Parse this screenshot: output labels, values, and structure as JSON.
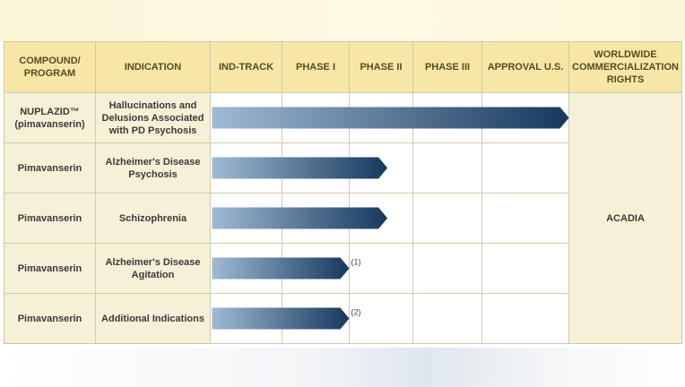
{
  "colors": {
    "header_bg": "#f6e7a6",
    "label_bg": "#f6f0d7",
    "bar_start": "#9fbad3",
    "bar_end": "#17385e",
    "grid": "#cfc9ad"
  },
  "table": {
    "headers": {
      "compound": "COMPOUND/ PROGRAM",
      "indication": "INDICATION",
      "ind_track": "IND-TRACK",
      "phase1": "PHASE I",
      "phase2": "PHASE II",
      "phase3": "PHASE III",
      "approval": "APPROVAL U.S.",
      "rights": "WORLDWIDE COMMERCIALIZATION RIGHTS"
    },
    "rights_value": "ACADIA"
  },
  "chart_data": {
    "type": "bar",
    "orientation": "horizontal",
    "stages": [
      "IND-TRACK",
      "PHASE I",
      "PHASE II",
      "PHASE III",
      "APPROVAL U.S."
    ],
    "rows": [
      {
        "compound": "NUPLAZID™ (pimavanserin)",
        "indication": "Hallucinations and Delusions Associated with PD Psychosis",
        "stage_reached": "APPROVAL U.S.",
        "progress": 5.0,
        "note": ""
      },
      {
        "compound": "Pimavanserin",
        "indication": "Alzheimer's Disease Psychosis",
        "stage_reached": "PHASE II",
        "progress": 2.6,
        "note": ""
      },
      {
        "compound": "Pimavanserin",
        "indication": "Schizophrenia",
        "stage_reached": "PHASE II",
        "progress": 2.6,
        "note": ""
      },
      {
        "compound": "Pimavanserin",
        "indication": "Alzheimer's Disease Agitation",
        "stage_reached": "PHASE I",
        "progress": 2.0,
        "note": "(1)"
      },
      {
        "compound": "Pimavanserin",
        "indication": "Additional Indications",
        "stage_reached": "PHASE I",
        "progress": 2.0,
        "note": "(2)"
      }
    ]
  }
}
